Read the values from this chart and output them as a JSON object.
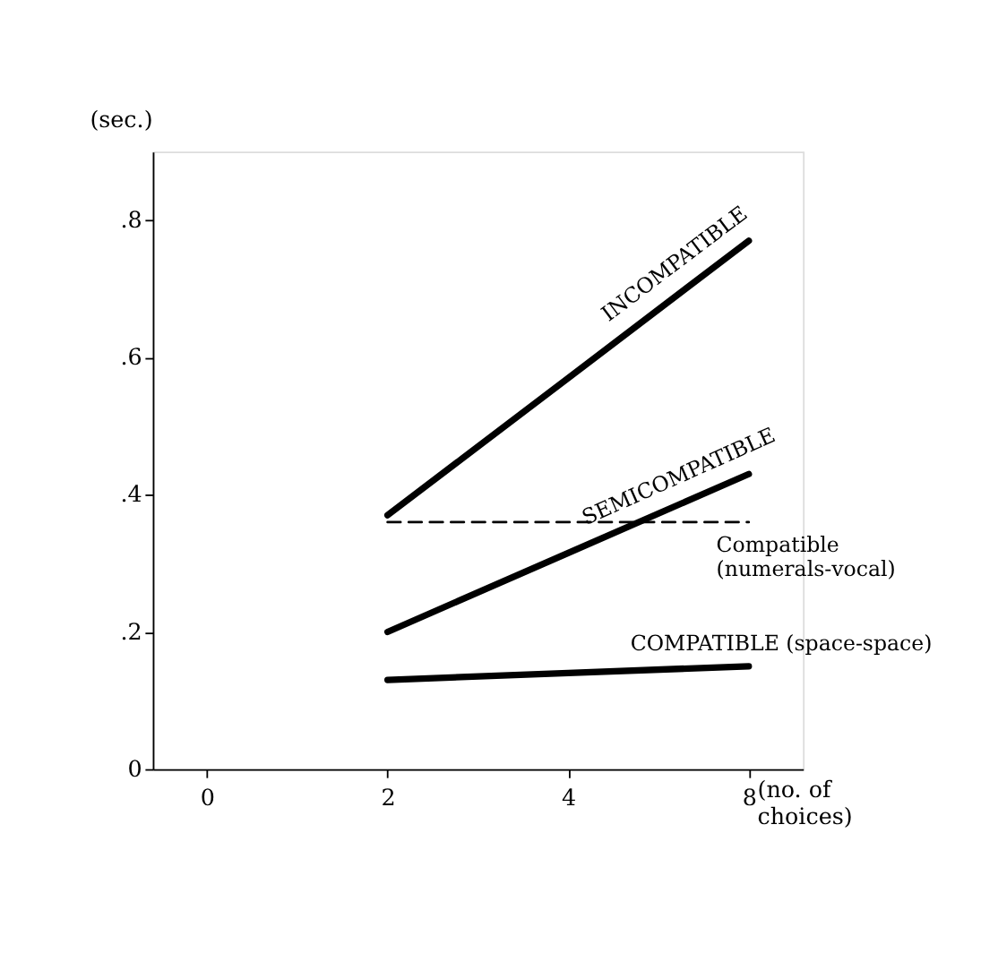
{
  "chart_data": {
    "type": "line",
    "ylabel": "(sec.)",
    "xlabel": "(no. of choices)",
    "categories": [
      "0",
      "2",
      "4",
      "8"
    ],
    "ylim": [
      0,
      0.9
    ],
    "yticks": [
      {
        "value": 0,
        "label": "0"
      },
      {
        "value": 0.2,
        "label": ".2"
      },
      {
        "value": 0.4,
        "label": ".4"
      },
      {
        "value": 0.6,
        "label": ".6"
      },
      {
        "value": 0.8,
        "label": ".8"
      }
    ],
    "grid": false,
    "series": [
      {
        "name": "INCOMPATIBLE",
        "color": "#000000",
        "values": [
          null,
          0.37,
          0.57,
          0.77
        ]
      },
      {
        "name": "SEMICOMPATIBLE",
        "color": "#000000",
        "values": [
          null,
          0.2,
          0.315,
          0.43
        ]
      },
      {
        "name": "Compatible\n(numerals-vocal)",
        "color": "#000000",
        "line_style": "dashed",
        "values": [
          null,
          0.36,
          0.36,
          0.36
        ]
      },
      {
        "name": "COMPATIBLE (space-space)",
        "color": "#000000",
        "values": [
          null,
          0.13,
          0.14,
          0.15
        ]
      }
    ]
  }
}
